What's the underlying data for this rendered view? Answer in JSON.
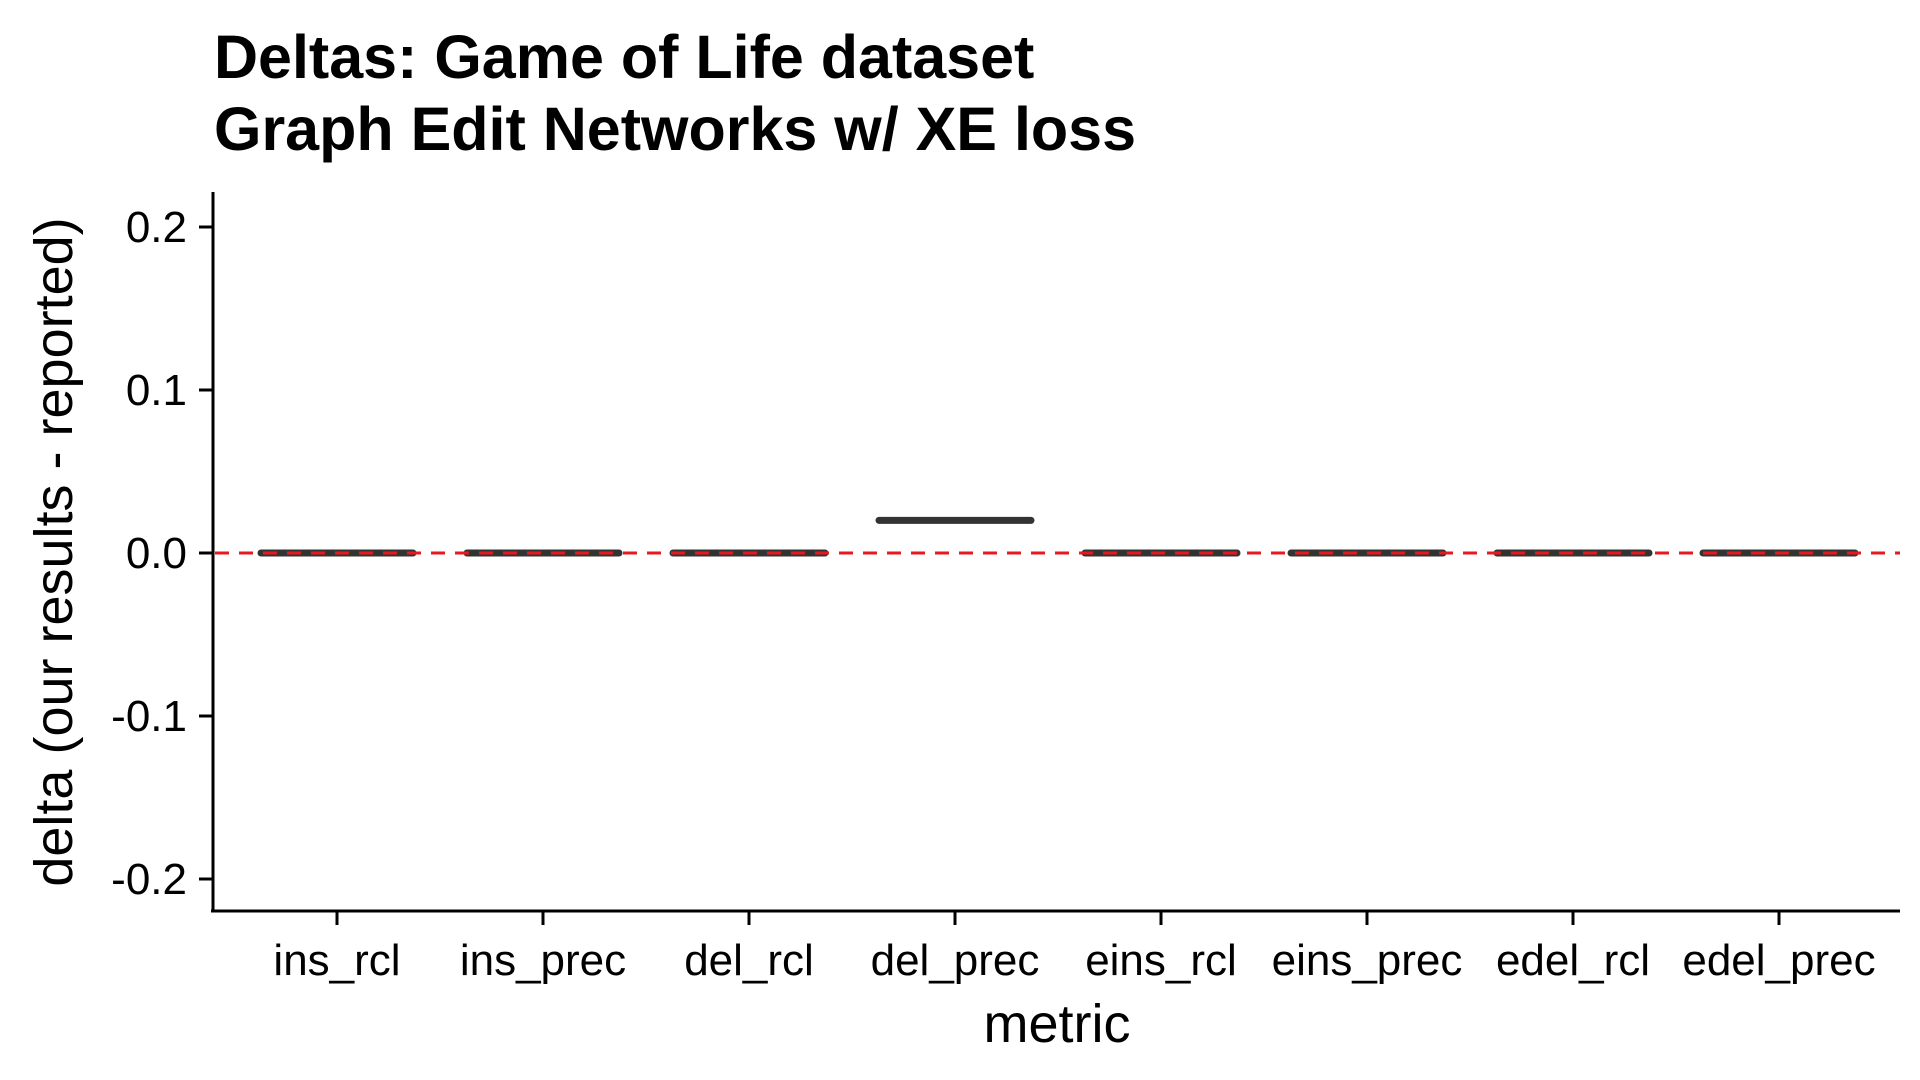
{
  "chart_data": {
    "type": "box",
    "title": "Deltas: Game of Life dataset",
    "subtitle": "Graph Edit Networks w/ XE loss",
    "xlabel": "metric",
    "ylabel": "delta (our results - reported)",
    "categories": [
      "ins_rcl",
      "ins_prec",
      "del_rcl",
      "del_prec",
      "eins_rcl",
      "eins_prec",
      "edel_rcl",
      "edel_prec"
    ],
    "values": [
      0.0,
      0.0,
      0.0,
      0.02,
      0.0,
      0.0,
      0.0,
      0.0
    ],
    "yticks": [
      "0.2",
      "0.1",
      "0.0",
      "-0.1",
      "-0.2"
    ],
    "ytick_values": [
      0.2,
      0.1,
      0.0,
      -0.1,
      -0.2
    ],
    "ylim": [
      -0.22,
      0.22
    ],
    "reference_line": {
      "y": 0.0,
      "style": "dashed",
      "color": "#e41a1c"
    },
    "box_color": "#333333",
    "grid": false,
    "legend": "none"
  }
}
